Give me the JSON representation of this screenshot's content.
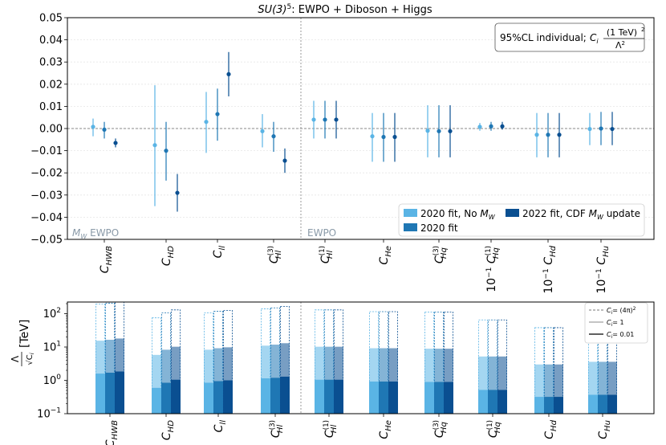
{
  "chart_data": [
    {
      "type": "errorbar",
      "title_sup_base": "SU(3)",
      "title_sup_exp": "5",
      "title_rest": ": EWPO + Diboson + Higgs",
      "ylim": [
        -0.05,
        0.05
      ],
      "yticks": [
        "0.05",
        "0.04",
        "0.03",
        "0.02",
        "0.01",
        "0.00",
        "−0.01",
        "−0.02",
        "−0.03",
        "−0.04",
        "−0.05"
      ],
      "ytick_values": [
        0.05,
        0.04,
        0.03,
        0.02,
        0.01,
        0.0,
        -0.01,
        -0.02,
        -0.03,
        -0.04,
        -0.05
      ],
      "grid": true,
      "annotation": "95%CL individual; C_i (1 TeV)^2 / Λ^2",
      "annotation_prefix": "95%CL individual; ",
      "annotation_num": "(1 TeV)",
      "annotation_den": "Λ",
      "region_labels": {
        "left": "M_W EWPO",
        "left_main": "M",
        "left_sub": "W",
        "left_rest": "EWPO",
        "right": "EWPO"
      },
      "categories": [
        {
          "base": "C",
          "sub": "HWB",
          "sup": "",
          "prefix": ""
        },
        {
          "base": "C",
          "sub": "HD",
          "sup": "",
          "prefix": ""
        },
        {
          "base": "C",
          "sub": "ll",
          "sup": "",
          "prefix": ""
        },
        {
          "base": "C",
          "sub": "Hl",
          "sup": "(3)",
          "prefix": ""
        },
        {
          "base": "C",
          "sub": "Hl",
          "sup": "(1)",
          "prefix": ""
        },
        {
          "base": "C",
          "sub": "He",
          "sup": "",
          "prefix": ""
        },
        {
          "base": "C",
          "sub": "Hq",
          "sup": "(3)",
          "prefix": ""
        },
        {
          "base": "C",
          "sub": "Hq",
          "sup": "(1)",
          "prefix": "10",
          "prefix_exp": "−1"
        },
        {
          "base": "C",
          "sub": "Hd",
          "sup": "",
          "prefix": "10",
          "prefix_exp": "−1"
        },
        {
          "base": "C",
          "sub": "Hu",
          "sup": "",
          "prefix": "10",
          "prefix_exp": "−1"
        }
      ],
      "series": [
        {
          "name": "2020 fit, No M_W",
          "name_text": "2020 fit, No ",
          "name_m": "M",
          "name_sub": "W",
          "color": "#5ab4e5",
          "central": [
            0.0008,
            -0.0075,
            0.003,
            -0.0012,
            0.004,
            -0.0035,
            -0.001,
            0.0008,
            -0.0028,
            -0.0002
          ],
          "low": [
            -0.0035,
            -0.035,
            -0.011,
            -0.0085,
            -0.0045,
            -0.015,
            -0.013,
            -0.001,
            -0.013,
            -0.0075
          ],
          "high": [
            0.0045,
            0.0195,
            0.0165,
            0.0065,
            0.0125,
            0.007,
            0.0105,
            0.0025,
            0.007,
            0.007
          ]
        },
        {
          "name": "2020 fit",
          "name_text": "2020 fit",
          "color": "#1f77b4",
          "central": [
            -0.0005,
            -0.01,
            0.0065,
            -0.0035,
            0.004,
            -0.0038,
            -0.0012,
            0.001,
            -0.0028,
            0.0
          ],
          "low": [
            -0.0045,
            -0.0235,
            -0.0055,
            -0.0105,
            -0.0045,
            -0.015,
            -0.013,
            -0.001,
            -0.013,
            -0.0075
          ],
          "high": [
            0.003,
            0.003,
            0.018,
            0.003,
            0.0125,
            0.007,
            0.0105,
            0.003,
            0.007,
            0.0075
          ]
        },
        {
          "name": "2022 fit, CDF M_W update",
          "name_text": "2022 fit, CDF ",
          "name_m": "M",
          "name_sub": "W",
          "name_rest": " update",
          "color": "#0a4f91",
          "central": [
            -0.0065,
            -0.029,
            0.0245,
            -0.0145,
            0.004,
            -0.0038,
            -0.0012,
            0.001,
            -0.0028,
            -0.0002
          ],
          "low": [
            -0.0085,
            -0.0375,
            0.0145,
            -0.02,
            -0.0045,
            -0.015,
            -0.013,
            -0.0005,
            -0.013,
            -0.0075
          ],
          "high": [
            -0.0045,
            -0.0205,
            0.0345,
            -0.009,
            0.0125,
            0.007,
            0.0105,
            0.003,
            0.007,
            0.0075
          ]
        }
      ]
    },
    {
      "type": "stacked-bar-log",
      "ylabel_num": "Λ",
      "ylabel_den": "√C",
      "ylabel_den_sub": "i",
      "ylabel_unit": "[TeV]",
      "ylim_log10": [
        -1,
        2.35
      ],
      "yticks": [
        {
          "base": "10",
          "exp": "2",
          "value": 100
        },
        {
          "base": "10",
          "exp": "1",
          "value": 10
        },
        {
          "base": "10",
          "exp": "0",
          "value": 1
        },
        {
          "base": "10",
          "exp": "−1",
          "value": 0.1
        }
      ],
      "legend": [
        {
          "label": "C_i = (4π)^2",
          "text": "= (4π)",
          "sup": "2",
          "style": "dashed"
        },
        {
          "label": "C_i = 1",
          "text": "= 1",
          "style": "gray"
        },
        {
          "label": "C_i = 0.01",
          "text": "= 0.01",
          "style": "solid"
        }
      ],
      "categories": [
        {
          "base": "C",
          "sub": "HWB",
          "sup": ""
        },
        {
          "base": "C",
          "sub": "HD",
          "sup": ""
        },
        {
          "base": "C",
          "sub": "ll",
          "sup": ""
        },
        {
          "base": "C",
          "sub": "Hl",
          "sup": "(3)"
        },
        {
          "base": "C",
          "sub": "Hl",
          "sup": "(1)"
        },
        {
          "base": "C",
          "sub": "He",
          "sup": ""
        },
        {
          "base": "C",
          "sub": "Hq",
          "sup": "(3)"
        },
        {
          "base": "C",
          "sub": "Hq",
          "sup": "(1)"
        },
        {
          "base": "C",
          "sub": "Hd",
          "sup": ""
        },
        {
          "base": "C",
          "sub": "Hu",
          "sup": ""
        }
      ],
      "series": [
        {
          "name": "2020 fit, No M_W",
          "color": "#5ab4e5",
          "c001": [
            1.6,
            0.6,
            0.85,
            1.15,
            1.05,
            0.92,
            0.9,
            0.52,
            0.32,
            0.37
          ],
          "c1": [
            15.5,
            5.8,
            8.3,
            11.0,
            10.2,
            9.2,
            8.9,
            5.2,
            3.0,
            3.6
          ],
          "c4pi": [
            195,
            75,
            105,
            140,
            130,
            115,
            112,
            65,
            38,
            45
          ]
        },
        {
          "name": "2020 fit",
          "color": "#1f77b4",
          "c001": [
            1.7,
            0.85,
            0.95,
            1.2,
            1.05,
            0.92,
            0.9,
            0.52,
            0.32,
            0.37
          ],
          "c1": [
            16.5,
            8.3,
            9.2,
            11.8,
            10.2,
            9.2,
            8.9,
            5.2,
            3.0,
            3.6
          ],
          "c4pi": [
            205,
            105,
            118,
            150,
            130,
            115,
            112,
            65,
            38,
            45
          ]
        },
        {
          "name": "2022 fit, CDF M_W update",
          "color": "#0a4f91",
          "c001": [
            1.85,
            1.05,
            1.0,
            1.3,
            1.05,
            0.92,
            0.9,
            0.52,
            0.32,
            0.37
          ],
          "c1": [
            18.0,
            10.2,
            9.8,
            13.0,
            10.2,
            9.2,
            8.9,
            5.2,
            3.0,
            3.6
          ],
          "c4pi": [
            225,
            130,
            125,
            165,
            130,
            115,
            112,
            65,
            38,
            45
          ]
        }
      ]
    }
  ]
}
